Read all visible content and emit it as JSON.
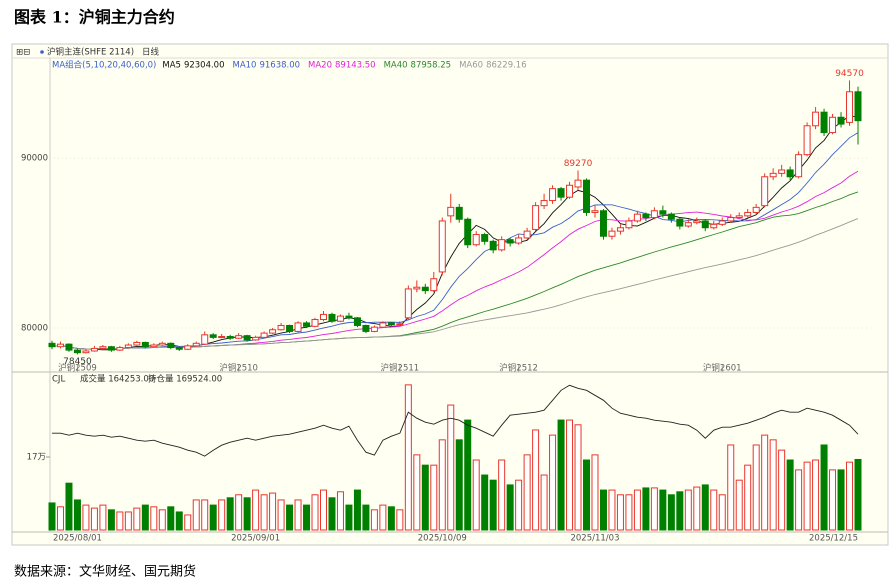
{
  "title": "图表 1：沪铜主力合约",
  "source": "数据来源：文华财经、国元期货",
  "chart_data": {
    "type": "candlestick",
    "symbol": "沪铜主连(SHFE 2114)",
    "period": "日线",
    "ma_label": "MA组合(5,10,20,40,60,0)",
    "ma": [
      {
        "name": "MA5",
        "value_label": "92304.00",
        "period": 5,
        "color": "#111111"
      },
      {
        "name": "MA10",
        "value_label": "91638.00",
        "period": 10,
        "color": "#3a5fd0"
      },
      {
        "name": "MA20",
        "value_label": "89143.50",
        "period": 20,
        "color": "#e020e0"
      },
      {
        "name": "MA40",
        "value_label": "87958.25",
        "period": 40,
        "color": "#2a8a2a"
      },
      {
        "name": "MA60",
        "value_label": "86229.16",
        "period": 60,
        "color": "#999999"
      }
    ],
    "categories": [
      null,
      null,
      null,
      "2025/08/01",
      null,
      null,
      null,
      null,
      null,
      null,
      null,
      null,
      null,
      null,
      null,
      null,
      null,
      null,
      null,
      null,
      null,
      null,
      null,
      null,
      "2025/09/01",
      null,
      null,
      null,
      null,
      null,
      null,
      null,
      null,
      null,
      null,
      null,
      null,
      null,
      null,
      null,
      null,
      null,
      null,
      null,
      null,
      null,
      "2025/10/09",
      null,
      null,
      null,
      null,
      null,
      null,
      null,
      null,
      null,
      null,
      null,
      null,
      null,
      null,
      null,
      null,
      null,
      "2025/11/03",
      null,
      null,
      null,
      null,
      null,
      null,
      null,
      null,
      null,
      null,
      null,
      null,
      null,
      null,
      null,
      null,
      null,
      null,
      null,
      null,
      null,
      null,
      null,
      null,
      null,
      null,
      null,
      null,
      null,
      null,
      "2025/12/15"
    ],
    "contracts": [
      null,
      null,
      null,
      "沪铜2509",
      null,
      null,
      null,
      null,
      null,
      null,
      null,
      null,
      null,
      null,
      null,
      null,
      null,
      null,
      null,
      null,
      null,
      null,
      "沪铜2510",
      null,
      null,
      null,
      null,
      null,
      null,
      null,
      null,
      null,
      null,
      null,
      null,
      null,
      null,
      null,
      null,
      null,
      null,
      "沪铜2511",
      null,
      null,
      null,
      null,
      null,
      null,
      null,
      null,
      null,
      null,
      null,
      null,
      null,
      "沪铜2512",
      null,
      null,
      null,
      null,
      null,
      null,
      null,
      null,
      null,
      null,
      null,
      null,
      null,
      null,
      null,
      null,
      null,
      null,
      null,
      null,
      null,
      null,
      null,
      "沪铜2601",
      null,
      null,
      null,
      null,
      null,
      null,
      null,
      null,
      null,
      null,
      null,
      null,
      null,
      null,
      null,
      null
    ],
    "ohlc": [
      [
        79100,
        79250,
        78750,
        78900
      ],
      [
        78900,
        79200,
        78800,
        79050
      ],
      [
        79050,
        79100,
        78600,
        78700
      ],
      [
        78700,
        78800,
        78450,
        78550
      ],
      [
        78550,
        78750,
        78500,
        78650
      ],
      [
        78650,
        78950,
        78600,
        78800
      ],
      [
        78800,
        79000,
        78700,
        78900
      ],
      [
        78900,
        78950,
        78600,
        78700
      ],
      [
        78700,
        78950,
        78650,
        78850
      ],
      [
        78850,
        79100,
        78800,
        79000
      ],
      [
        79000,
        79250,
        78950,
        79150
      ],
      [
        79150,
        79200,
        78800,
        78900
      ],
      [
        78900,
        79100,
        78850,
        79000
      ],
      [
        79000,
        79200,
        78950,
        79100
      ],
      [
        79100,
        79150,
        78750,
        78850
      ],
      [
        78850,
        78900,
        78650,
        78750
      ],
      [
        78750,
        79050,
        78700,
        78950
      ],
      [
        78950,
        79200,
        78900,
        79100
      ],
      [
        79050,
        79800,
        79000,
        79600
      ],
      [
        79600,
        79700,
        79350,
        79450
      ],
      [
        79450,
        79650,
        79400,
        79500
      ],
      [
        79500,
        79600,
        79300,
        79400
      ],
      [
        79400,
        79700,
        79350,
        79550
      ],
      [
        79550,
        79600,
        79200,
        79300
      ],
      [
        79300,
        79550,
        79250,
        79450
      ],
      [
        79450,
        79800,
        79400,
        79700
      ],
      [
        79700,
        80000,
        79650,
        79900
      ],
      [
        79900,
        80300,
        79850,
        80150
      ],
      [
        80150,
        80200,
        79700,
        79800
      ],
      [
        79800,
        80400,
        79750,
        80300
      ],
      [
        80300,
        80400,
        80000,
        80100
      ],
      [
        80100,
        80600,
        80050,
        80500
      ],
      [
        80500,
        81000,
        80400,
        80800
      ],
      [
        80800,
        80900,
        80300,
        80400
      ],
      [
        80400,
        80800,
        80350,
        80700
      ],
      [
        80700,
        80900,
        80500,
        80600
      ],
      [
        80600,
        80650,
        80050,
        80150
      ],
      [
        80150,
        80200,
        79700,
        79800
      ],
      [
        79800,
        80150,
        79750,
        80050
      ],
      [
        80050,
        80400,
        80000,
        80300
      ],
      [
        80300,
        80350,
        80100,
        80200
      ],
      [
        80200,
        80400,
        80100,
        80250
      ],
      [
        80600,
        82500,
        80500,
        82300
      ],
      [
        82300,
        82800,
        82100,
        82400
      ],
      [
        82400,
        82600,
        82000,
        82200
      ],
      [
        82200,
        83300,
        82100,
        82900
      ],
      [
        83300,
        86500,
        83100,
        86300
      ],
      [
        86600,
        87900,
        86200,
        87100
      ],
      [
        87100,
        87300,
        86200,
        86400
      ],
      [
        86400,
        86500,
        84700,
        84900
      ],
      [
        84900,
        85700,
        84800,
        85500
      ],
      [
        85500,
        85600,
        84900,
        85100
      ],
      [
        85100,
        85200,
        84400,
        84600
      ],
      [
        84600,
        85400,
        84500,
        85200
      ],
      [
        85200,
        85300,
        84800,
        85000
      ],
      [
        85000,
        85500,
        84900,
        85300
      ],
      [
        85300,
        85900,
        85200,
        85700
      ],
      [
        85800,
        87400,
        85700,
        87200
      ],
      [
        87200,
        87900,
        87000,
        87500
      ],
      [
        87500,
        88400,
        87300,
        88200
      ],
      [
        88200,
        88300,
        87500,
        87700
      ],
      [
        87700,
        88600,
        87600,
        88400
      ],
      [
        88300,
        89270,
        88100,
        88700
      ],
      [
        88700,
        88800,
        86600,
        86800
      ],
      [
        86800,
        87200,
        86500,
        86900
      ],
      [
        86900,
        87000,
        85200,
        85400
      ],
      [
        85400,
        85900,
        85200,
        85700
      ],
      [
        85700,
        86100,
        85500,
        85900
      ],
      [
        85900,
        86500,
        85800,
        86300
      ],
      [
        86300,
        86900,
        86200,
        86700
      ],
      [
        86700,
        86800,
        86300,
        86500
      ],
      [
        86500,
        87100,
        86400,
        86900
      ],
      [
        86900,
        87200,
        86500,
        86700
      ],
      [
        86700,
        86800,
        86200,
        86400
      ],
      [
        86400,
        86500,
        85800,
        86000
      ],
      [
        86000,
        86400,
        85900,
        86200
      ],
      [
        86200,
        86500,
        86100,
        86300
      ],
      [
        86300,
        86400,
        85700,
        85900
      ],
      [
        85900,
        86300,
        85800,
        86100
      ],
      [
        86100,
        86500,
        86000,
        86300
      ],
      [
        86300,
        86700,
        86200,
        86500
      ],
      [
        86500,
        86800,
        86400,
        86600
      ],
      [
        86600,
        87000,
        86500,
        86800
      ],
      [
        86800,
        87300,
        86700,
        87100
      ],
      [
        87200,
        89100,
        87100,
        88900
      ],
      [
        88900,
        89400,
        88700,
        89100
      ],
      [
        89100,
        89600,
        88900,
        89300
      ],
      [
        89300,
        89500,
        88700,
        88900
      ],
      [
        88900,
        90400,
        88800,
        90200
      ],
      [
        90200,
        92100,
        90100,
        91900
      ],
      [
        91900,
        93000,
        91700,
        92700
      ],
      [
        92700,
        92900,
        91300,
        91500
      ],
      [
        91500,
        92600,
        91400,
        92400
      ],
      [
        92400,
        92700,
        91800,
        92000
      ],
      [
        92100,
        94570,
        91900,
        93900
      ],
      [
        93900,
        94200,
        90800,
        92200
      ]
    ],
    "up_color": "#e8362c",
    "down_color": "#008000",
    "ylim": [
      77530,
      95770
    ],
    "yticks": [
      80000,
      90000
    ],
    "volume": {
      "label": "CJL",
      "volume_label": "成交量 164253.00",
      "oi_label": "持仓量 169524.00",
      "values": [
        63000,
        54000,
        109000,
        70000,
        58000,
        51000,
        58000,
        47000,
        42000,
        42000,
        51000,
        58000,
        54000,
        47000,
        54000,
        42000,
        35000,
        70000,
        70000,
        58000,
        70000,
        75000,
        82000,
        75000,
        93000,
        82000,
        86000,
        70000,
        58000,
        70000,
        58000,
        82000,
        93000,
        75000,
        89000,
        58000,
        93000,
        58000,
        47000,
        58000,
        54000,
        47000,
        338000,
        175000,
        151000,
        151000,
        210000,
        291000,
        210000,
        256000,
        163000,
        128000,
        116000,
        163000,
        105000,
        116000,
        175000,
        233000,
        128000,
        221000,
        256000,
        256000,
        245000,
        163000,
        175000,
        93000,
        93000,
        82000,
        82000,
        93000,
        98000,
        98000,
        93000,
        82000,
        89000,
        93000,
        100000,
        105000,
        93000,
        82000,
        198000,
        116000,
        151000,
        198000,
        221000,
        210000,
        186000,
        163000,
        140000,
        158000,
        163000,
        198000,
        140000,
        140000,
        158000,
        164253
      ],
      "oi": [
        170200,
        170200,
        168800,
        170200,
        168800,
        168100,
        168800,
        167400,
        168100,
        166700,
        165300,
        164600,
        165300,
        163200,
        161800,
        160400,
        158300,
        156900,
        154100,
        158300,
        161800,
        163900,
        165300,
        166700,
        165300,
        166700,
        168100,
        168800,
        169500,
        170900,
        172300,
        173700,
        175800,
        173700,
        172300,
        175100,
        165300,
        156900,
        154800,
        165300,
        168100,
        170200,
        184900,
        180700,
        177900,
        176500,
        179300,
        180700,
        179300,
        175800,
        173700,
        170900,
        168100,
        175800,
        182800,
        183500,
        184200,
        184900,
        186300,
        193300,
        200300,
        203800,
        201700,
        200300,
        196800,
        193300,
        187700,
        184200,
        182800,
        181400,
        180700,
        179300,
        178600,
        177900,
        176500,
        175800,
        172300,
        166700,
        172300,
        174400,
        174400,
        175800,
        177200,
        179300,
        181400,
        184200,
        186300,
        184900,
        184900,
        187700,
        186300,
        184900,
        182800,
        179300,
        175800,
        169524
      ],
      "ylim": [
        0,
        337700
      ],
      "yticks": [
        {
          "value": 170000,
          "label": "17万"
        }
      ],
      "y2lim": [
        102300,
        204000
      ]
    }
  }
}
